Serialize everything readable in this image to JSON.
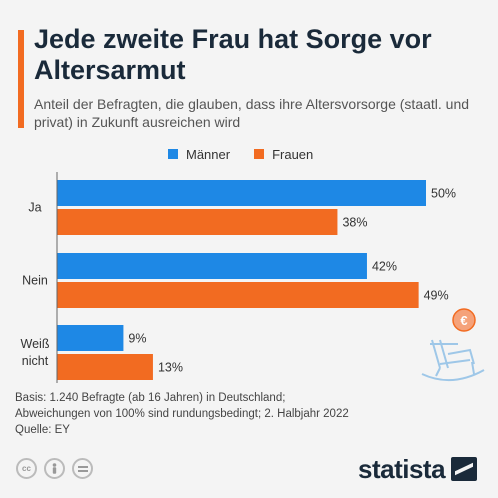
{
  "title": "Jede zweite Frau hat Sorge vor Altersarmut",
  "subtitle": "Anteil der Befragten, die glauben, dass ihre Altersvorsorge (staatl. und privat) in Zukunft ausreichen wird",
  "legend": {
    "men": "Männer",
    "women": "Frauen"
  },
  "colors": {
    "men": "#1e88e5",
    "women": "#f26b21",
    "accent": "#f26b21"
  },
  "chart_data": {
    "type": "bar",
    "orientation": "horizontal",
    "categories": [
      [
        "Ja"
      ],
      [
        "Nein"
      ],
      [
        "Weiß",
        "nicht"
      ]
    ],
    "series": [
      {
        "name": "Männer",
        "values": [
          50,
          42,
          9
        ],
        "labels": [
          "50%",
          "42%",
          "9%"
        ]
      },
      {
        "name": "Frauen",
        "values": [
          38,
          49,
          13
        ],
        "labels": [
          "38%",
          "49%",
          "13%"
        ]
      }
    ],
    "unit": "%",
    "xlim": [
      0,
      50
    ],
    "legend_position": "top"
  },
  "footer": {
    "line1": "Basis: 1.240 Befragte (ab 16 Jahren) in Deutschland;",
    "line2": "Abweichungen von 100% sind rundungsbedingt; 2. Halbjahr 2022",
    "line3": "Quelle: EY"
  },
  "icons": [
    "cc-icon",
    "person-icon",
    "equals-icon",
    "rocking-chair-icon",
    "euro-coin-icon"
  ],
  "logo": {
    "text": "statista"
  }
}
